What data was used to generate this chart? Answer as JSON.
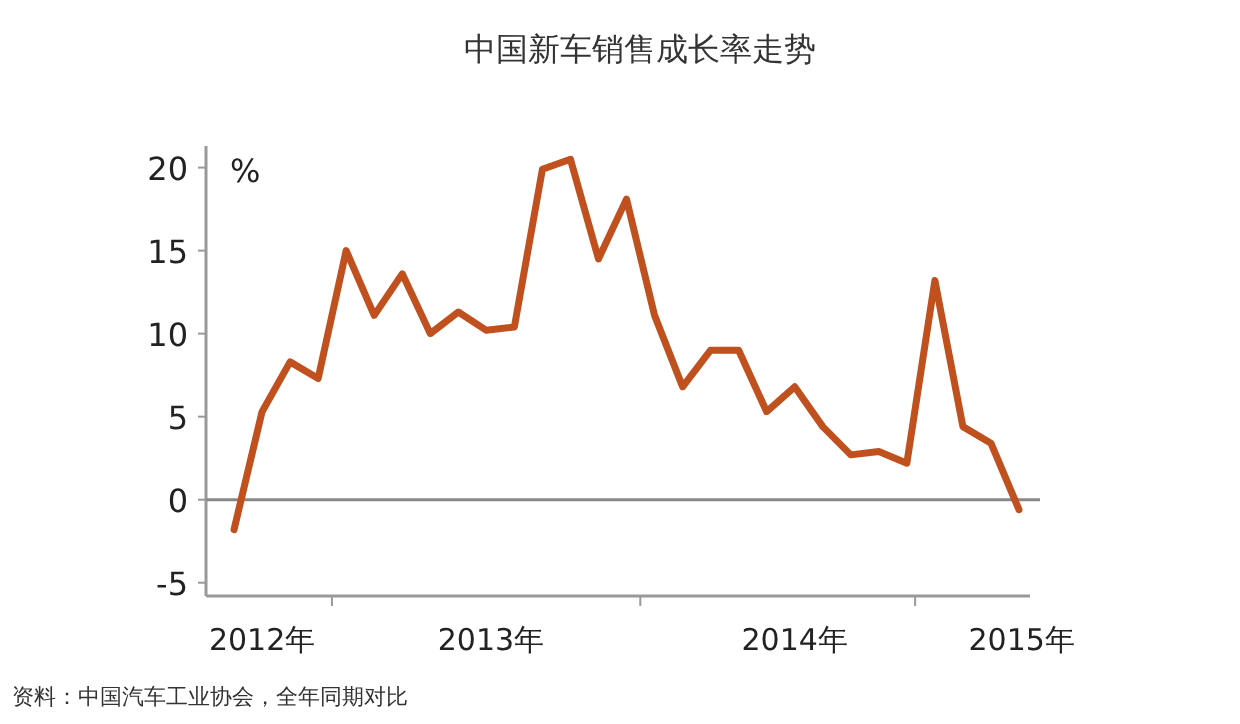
{
  "chart_data": {
    "type": "line",
    "title": "中国新车销售成长率走势",
    "ylabel": "%",
    "annotations": [
      "资料：中国汽车工业协会，全年同期对比"
    ],
    "x": [
      "2012-09",
      "2012-10",
      "2012-11",
      "2012-12",
      "2013-01",
      "2013-02",
      "2013-03",
      "2013-04",
      "2013-05",
      "2013-06",
      "2013-07",
      "2013-08",
      "2013-09",
      "2013-10",
      "2013-11",
      "2013-12",
      "2014-01",
      "2014-02",
      "2014-03",
      "2014-04",
      "2014-05",
      "2014-06",
      "2014-07",
      "2014-08",
      "2014-09",
      "2014-10",
      "2014-11",
      "2014-12",
      "2015-01"
    ],
    "series": [
      {
        "color": "#c0501e",
        "values": [
          -1.8,
          5.3,
          8.3,
          7.3,
          15.0,
          11.1,
          13.6,
          10.0,
          11.3,
          10.2,
          10.4,
          19.9,
          20.5,
          14.5,
          18.1,
          11.1,
          6.8,
          9.0,
          9.0,
          5.3,
          6.8,
          4.4,
          2.7,
          2.9,
          2.2,
          13.2,
          4.4,
          3.4,
          -0.6
        ]
      }
    ],
    "xlim": [
      "2012-08",
      "2015-01-13"
    ],
    "ylim": [
      -5.8,
      21.3
    ],
    "xticks": [
      {
        "value": "2012-10",
        "label": "2012年"
      },
      {
        "value": "2012-12-16",
        "label": null
      },
      {
        "value": "2013-06-06",
        "label": "2013年"
      },
      {
        "value": "2013-11-16",
        "label": null
      },
      {
        "value": "2014-05",
        "label": "2014年"
      },
      {
        "value": "2014-09-10",
        "label": null
      },
      {
        "value": "2015-01-04",
        "label": "2015年"
      }
    ],
    "yticks": [
      -5,
      0,
      5,
      10,
      15,
      20
    ],
    "ref_lines": [
      {
        "axis": "y",
        "value": 0,
        "color": "#888888"
      }
    ]
  }
}
